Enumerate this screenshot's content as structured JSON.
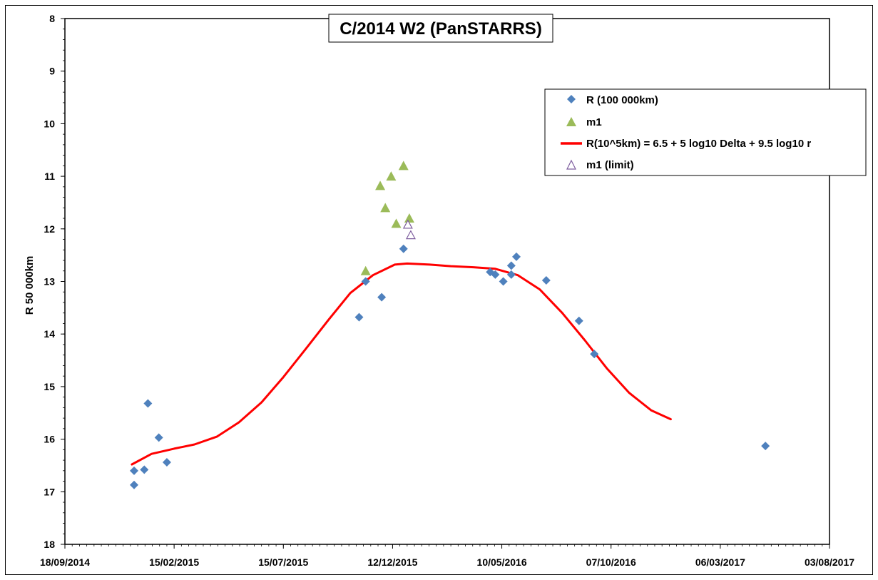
{
  "chart_data": {
    "type": "scatter",
    "title": "C/2014 W2 (PanSTARRS)",
    "xlabel": "",
    "ylabel": "R 50 000km",
    "y_inverted": true,
    "ylim": [
      8,
      18
    ],
    "y_ticks": [
      "8",
      "9",
      "10",
      "11",
      "12",
      "13",
      "14",
      "15",
      "16",
      "17",
      "18"
    ],
    "xlim": [
      "2014-09-18",
      "2017-08-03"
    ],
    "x_ticks": [
      {
        "date": "2014-09-18",
        "label": "18/09/2014"
      },
      {
        "date": "2015-02-15",
        "label": "15/02/2015"
      },
      {
        "date": "2015-07-15",
        "label": "15/07/2015"
      },
      {
        "date": "2015-12-12",
        "label": "12/12/2015"
      },
      {
        "date": "2016-05-10",
        "label": "10/05/2016"
      },
      {
        "date": "2016-10-07",
        "label": "07/10/2016"
      },
      {
        "date": "2017-03-06",
        "label": "06/03/2017"
      },
      {
        "date": "2017-08-03",
        "label": "03/08/2017"
      }
    ],
    "grid": false,
    "legend_position": "top-right",
    "colors": {
      "r_series": "#4f81bd",
      "m1_series": "#9bbb59",
      "fit_line": "#ff0000",
      "limit_series": "#7f5f9f"
    },
    "series": [
      {
        "name": "R (100 000km)",
        "marker": "diamond",
        "points": [
          {
            "x": "2014-12-22",
            "y": 16.6
          },
          {
            "x": "2014-12-22",
            "y": 16.87
          },
          {
            "x": "2015-01-05",
            "y": 16.58
          },
          {
            "x": "2015-01-10",
            "y": 15.32
          },
          {
            "x": "2015-01-25",
            "y": 15.97
          },
          {
            "x": "2015-02-05",
            "y": 16.44
          },
          {
            "x": "2015-10-27",
            "y": 13.68
          },
          {
            "x": "2015-11-05",
            "y": 13.0
          },
          {
            "x": "2015-11-27",
            "y": 13.3
          },
          {
            "x": "2015-12-27",
            "y": 12.38
          },
          {
            "x": "2016-04-24",
            "y": 12.82
          },
          {
            "x": "2016-05-01",
            "y": 12.87
          },
          {
            "x": "2016-05-12",
            "y": 13.0
          },
          {
            "x": "2016-05-23",
            "y": 12.87
          },
          {
            "x": "2016-05-23",
            "y": 12.7
          },
          {
            "x": "2016-05-30",
            "y": 12.53
          },
          {
            "x": "2016-07-10",
            "y": 12.98
          },
          {
            "x": "2016-08-24",
            "y": 13.75
          },
          {
            "x": "2016-09-14",
            "y": 14.38
          },
          {
            "x": "2017-05-07",
            "y": 16.13
          }
        ]
      },
      {
        "name": "m1",
        "marker": "triangle",
        "points": [
          {
            "x": "2015-11-05",
            "y": 12.8
          },
          {
            "x": "2015-11-25",
            "y": 11.18
          },
          {
            "x": "2015-12-02",
            "y": 11.6
          },
          {
            "x": "2015-12-10",
            "y": 11.0
          },
          {
            "x": "2015-12-17",
            "y": 11.9
          },
          {
            "x": "2015-12-27",
            "y": 10.8
          },
          {
            "x": "2016-01-04",
            "y": 11.8
          }
        ]
      },
      {
        "name": "R(10^5km) = 6.5 + 5 log10 Delta + 9.5 log10 r",
        "marker": "line",
        "points": [
          {
            "x": "2014-12-19",
            "y": 16.48
          },
          {
            "x": "2015-01-15",
            "y": 16.28
          },
          {
            "x": "2015-02-15",
            "y": 16.18
          },
          {
            "x": "2015-03-15",
            "y": 16.1
          },
          {
            "x": "2015-04-15",
            "y": 15.95
          },
          {
            "x": "2015-05-15",
            "y": 15.68
          },
          {
            "x": "2015-06-15",
            "y": 15.3
          },
          {
            "x": "2015-07-15",
            "y": 14.82
          },
          {
            "x": "2015-08-15",
            "y": 14.28
          },
          {
            "x": "2015-09-15",
            "y": 13.73
          },
          {
            "x": "2015-10-15",
            "y": 13.22
          },
          {
            "x": "2015-11-15",
            "y": 12.88
          },
          {
            "x": "2015-12-15",
            "y": 12.68
          },
          {
            "x": "2016-01-01",
            "y": 12.66
          },
          {
            "x": "2016-02-01",
            "y": 12.68
          },
          {
            "x": "2016-03-01",
            "y": 12.71
          },
          {
            "x": "2016-04-01",
            "y": 12.73
          },
          {
            "x": "2016-05-01",
            "y": 12.76
          },
          {
            "x": "2016-06-01",
            "y": 12.88
          },
          {
            "x": "2016-07-01",
            "y": 13.15
          },
          {
            "x": "2016-08-01",
            "y": 13.6
          },
          {
            "x": "2016-09-01",
            "y": 14.12
          },
          {
            "x": "2016-10-01",
            "y": 14.65
          },
          {
            "x": "2016-11-01",
            "y": 15.12
          },
          {
            "x": "2016-12-01",
            "y": 15.45
          },
          {
            "x": "2016-12-28",
            "y": 15.62
          }
        ]
      },
      {
        "name": "m1 (limit)",
        "marker": "open-triangle",
        "points": [
          {
            "x": "2016-01-02",
            "y": 11.92
          },
          {
            "x": "2016-01-06",
            "y": 12.12
          }
        ]
      }
    ]
  }
}
